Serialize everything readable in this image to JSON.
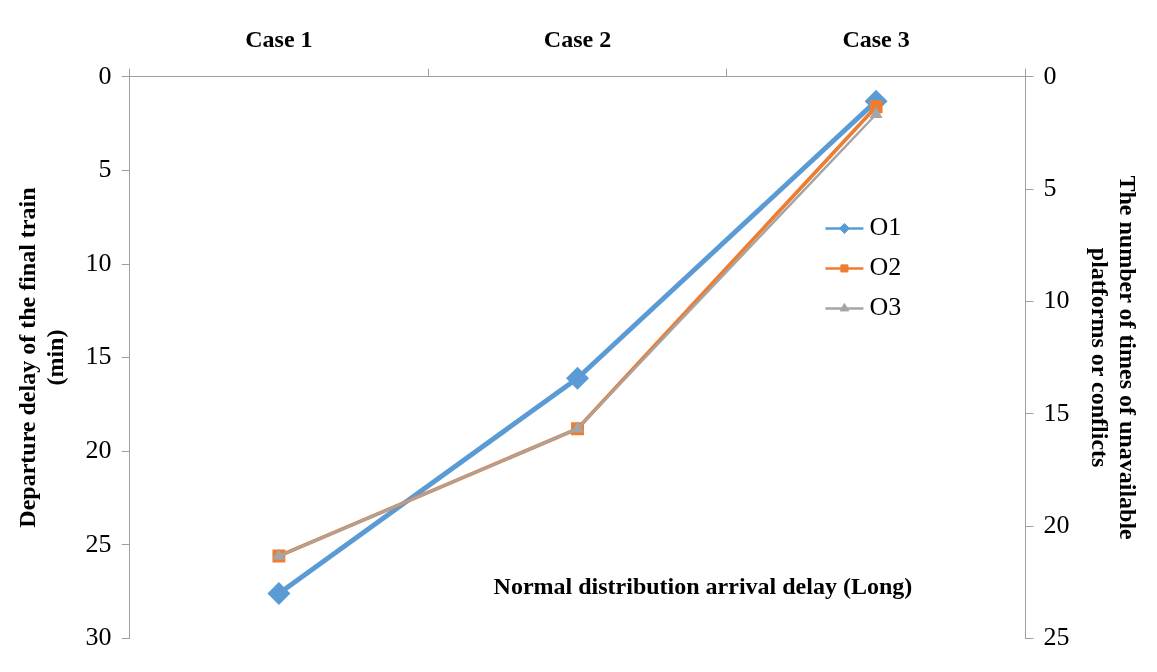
{
  "chart_data": {
    "type": "line",
    "categories": [
      "Case 1",
      "Case 2",
      "Case 3"
    ],
    "xlabel": "Normal distribution arrival delay (Long)",
    "ylabel": "Departure delay of the final train\n(min)",
    "y2label": "The number of times of unavailable\nplatforms or conflicts",
    "ylim": [
      30,
      0
    ],
    "yticks": [
      0,
      5,
      10,
      15,
      20,
      25,
      30
    ],
    "y2lim": [
      25,
      0
    ],
    "y2ticks": [
      0,
      5,
      10,
      15,
      20,
      25
    ],
    "grid": false,
    "legend": "right",
    "line_style": "solid",
    "series": [
      {
        "name": "O1",
        "color": "#5b9bd5",
        "marker": "diamond",
        "values": [
          27.6,
          16.1,
          1.3
        ]
      },
      {
        "name": "O2",
        "color": "#ed7d31",
        "marker": "square",
        "values": [
          25.6,
          18.8,
          1.6
        ]
      },
      {
        "name": "O3",
        "color": "#a5a5a5",
        "marker": "triangle",
        "values": [
          25.6,
          18.8,
          2.0
        ]
      }
    ]
  }
}
